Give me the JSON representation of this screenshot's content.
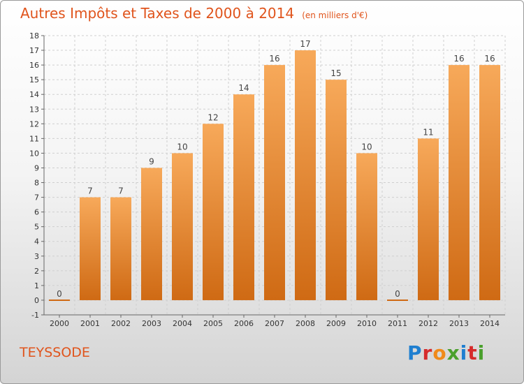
{
  "header": {
    "title": "Autres Impôts et Taxes de 2000 à 2014",
    "subtitle": "(en milliers d'€)"
  },
  "footer": {
    "commune": "TEYSSODE",
    "brand": "Proxiti"
  },
  "colors": {
    "accent": "#e0541c",
    "bar_top": "#f7a95a",
    "bar_bottom": "#cf6a14",
    "grid": "#cfcfcf"
  },
  "chart_data": {
    "type": "bar",
    "title": "Autres Impôts et Taxes de 2000 à 2014",
    "subtitle": "(en milliers d'€)",
    "categories": [
      "2000",
      "2001",
      "2002",
      "2003",
      "2004",
      "2005",
      "2006",
      "2007",
      "2008",
      "2009",
      "2010",
      "2011",
      "2012",
      "2013",
      "2014"
    ],
    "values": [
      0,
      7,
      7,
      9,
      10,
      12,
      14,
      16,
      17,
      15,
      10,
      0,
      11,
      16,
      16
    ],
    "ylim": [
      -1,
      18
    ],
    "yticks": [
      -1,
      0,
      1,
      2,
      3,
      4,
      5,
      6,
      7,
      8,
      9,
      10,
      11,
      12,
      13,
      14,
      15,
      16,
      17,
      18
    ],
    "grid": true,
    "legend": "none"
  }
}
